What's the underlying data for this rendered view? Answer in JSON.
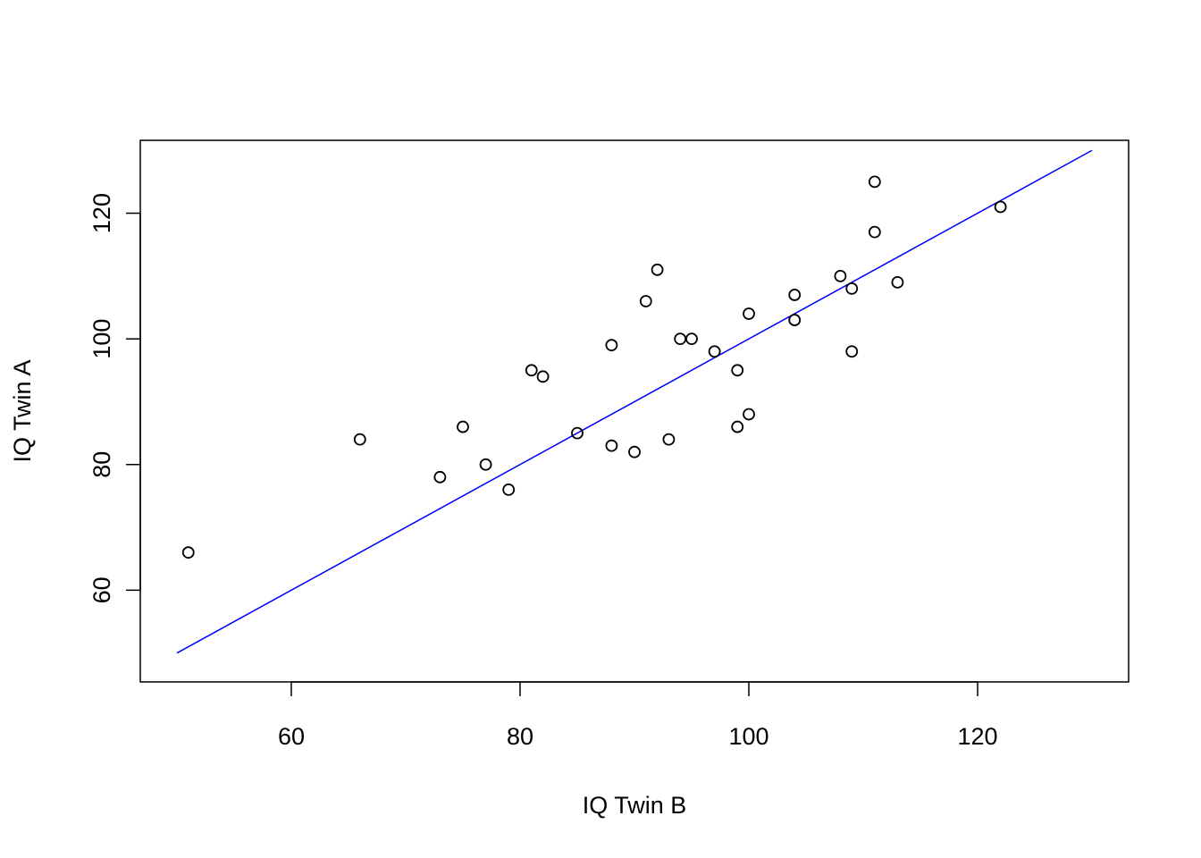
{
  "chart_data": {
    "type": "scatter",
    "title": "",
    "xlabel": "IQ Twin B",
    "ylabel": "IQ Twin A",
    "xlim": [
      46.8,
      133.2
    ],
    "ylim": [
      45.4,
      131.6
    ],
    "x_ticks": [
      60,
      80,
      100,
      120
    ],
    "y_ticks": [
      60,
      80,
      100,
      120
    ],
    "x_tick_labels": [
      "60",
      "80",
      "100",
      "120"
    ],
    "y_tick_labels": [
      "60",
      "80",
      "100",
      "120"
    ],
    "grid": false,
    "legend": "none",
    "point_style": "open circle",
    "point_color": "#000000",
    "series": [
      {
        "points": [
          {
            "x": 51,
            "y": 66
          },
          {
            "x": 66,
            "y": 84
          },
          {
            "x": 73,
            "y": 78
          },
          {
            "x": 75,
            "y": 86
          },
          {
            "x": 77,
            "y": 80
          },
          {
            "x": 79,
            "y": 76
          },
          {
            "x": 81,
            "y": 95
          },
          {
            "x": 82,
            "y": 94
          },
          {
            "x": 85,
            "y": 85
          },
          {
            "x": 88,
            "y": 99
          },
          {
            "x": 88,
            "y": 83
          },
          {
            "x": 90,
            "y": 82
          },
          {
            "x": 91,
            "y": 106
          },
          {
            "x": 92,
            "y": 111
          },
          {
            "x": 93,
            "y": 84
          },
          {
            "x": 94,
            "y": 100
          },
          {
            "x": 95,
            "y": 100
          },
          {
            "x": 97,
            "y": 98
          },
          {
            "x": 99,
            "y": 95
          },
          {
            "x": 99,
            "y": 86
          },
          {
            "x": 100,
            "y": 104
          },
          {
            "x": 100,
            "y": 88
          },
          {
            "x": 104,
            "y": 107
          },
          {
            "x": 104,
            "y": 103
          },
          {
            "x": 108,
            "y": 110
          },
          {
            "x": 109,
            "y": 108
          },
          {
            "x": 109,
            "y": 98
          },
          {
            "x": 111,
            "y": 125
          },
          {
            "x": 111,
            "y": 117
          },
          {
            "x": 113,
            "y": 109
          },
          {
            "x": 122,
            "y": 121
          }
        ]
      }
    ],
    "reference_line": {
      "color": "#0000ff",
      "from": {
        "x": 50,
        "y": 50
      },
      "to": {
        "x": 130,
        "y": 130
      }
    }
  }
}
